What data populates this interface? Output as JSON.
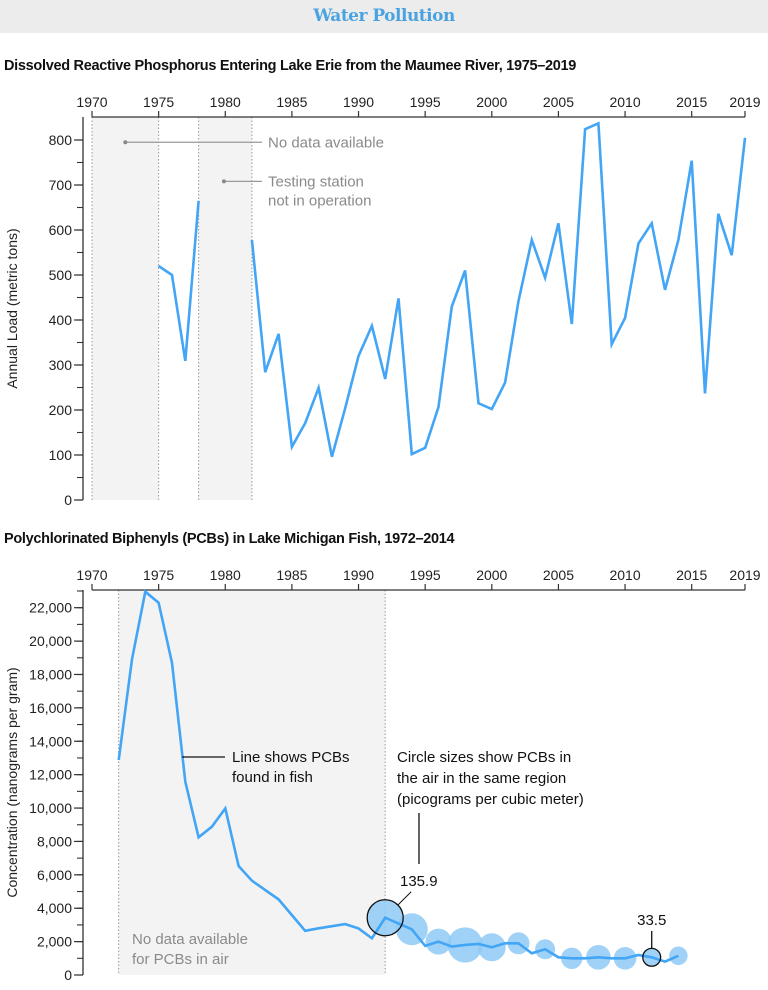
{
  "header": {
    "title": "Water Pollution"
  },
  "colors": {
    "line": "#42a5f5",
    "bubble": "#8fcaf6",
    "shade": "#f3f3f3",
    "header_bg": "#ececec",
    "header_text": "#4aa3e0",
    "annotation_gray": "#8a8a8a"
  },
  "chart_data": [
    {
      "type": "line",
      "title": "Dissolved Reactive Phosphorus Entering Lake Erie from the Maumee River, 1975–2019",
      "xlabel": "",
      "ylabel": "Annual Load (metric tons)",
      "xlim": [
        1970,
        2019
      ],
      "ylim": [
        0,
        850
      ],
      "x_ticks": [
        1970,
        1975,
        1980,
        1985,
        1990,
        1995,
        2000,
        2005,
        2010,
        2015,
        2019
      ],
      "y_ticks": [
        0,
        100,
        200,
        300,
        400,
        500,
        600,
        700,
        800
      ],
      "grid": false,
      "shaded_ranges": [
        [
          1970,
          1975
        ],
        [
          1978,
          1982
        ]
      ],
      "annotations": [
        {
          "text": [
            "No data available"
          ],
          "points_to_year": 1972.5,
          "value": 795
        },
        {
          "text": [
            "Testing station",
            "not in operation"
          ],
          "points_to_year": 1979.9,
          "value": 708
        }
      ],
      "segments": [
        {
          "x": [
            1975,
            1976,
            1977,
            1978
          ],
          "y": [
            520,
            500,
            309,
            665
          ]
        },
        {
          "x": [
            1982,
            1983,
            1984,
            1985,
            1986,
            1987,
            1988,
            1989,
            1990,
            1991,
            1992,
            1993,
            1994,
            1995,
            1996,
            1997,
            1998,
            1999,
            2000,
            2001,
            2002,
            2003,
            2004,
            2005,
            2006,
            2007,
            2008,
            2009,
            2010,
            2011,
            2012,
            2013,
            2014,
            2015,
            2016,
            2017,
            2018,
            2019
          ],
          "y": [
            578,
            284,
            369,
            118,
            171,
            249,
            96,
            204,
            320,
            387,
            269,
            448,
            102,
            116,
            207,
            430,
            510,
            215,
            202,
            261,
            441,
            578,
            494,
            615,
            391,
            824,
            837,
            346,
            405,
            570,
            615,
            467,
            578,
            754,
            237,
            636,
            544,
            805
          ]
        }
      ]
    },
    {
      "type": "line",
      "title": "Polychlorinated Biphenyls (PCBs) in Lake Michigan Fish, 1972–2014",
      "xlabel": "",
      "ylabel": "Concentration (nanograms per gram)",
      "xlim": [
        1970,
        2019
      ],
      "ylim": [
        0,
        23000
      ],
      "x_ticks": [
        1970,
        1975,
        1980,
        1985,
        1990,
        1995,
        2000,
        2005,
        2010,
        2015,
        2019
      ],
      "y_ticks": [
        0,
        2000,
        4000,
        6000,
        8000,
        10000,
        12000,
        14000,
        16000,
        18000,
        20000,
        22000
      ],
      "y_tick_labels": [
        "0",
        "2,000",
        "4,000",
        "6,000",
        "8,000",
        "10,000",
        "12,000",
        "14,000",
        "16,000",
        "18,000",
        "20,000",
        "22,000"
      ],
      "grid": false,
      "shaded_ranges": [
        [
          1972,
          1992
        ]
      ],
      "shaded_label": [
        "No data available",
        "for PCBs in air"
      ],
      "line_annotation": [
        "Line shows PCBs",
        "found in fish"
      ],
      "bubble_annotation": [
        "Circle sizes show PCBs in",
        "the air in the same region",
        "(picograms per cubic meter)"
      ],
      "fish": {
        "x": [
          1972,
          1973,
          1974,
          1975,
          1976,
          1977,
          1978,
          1979,
          1980,
          1981,
          1982,
          1983,
          1984,
          1985,
          1986,
          1987,
          1989,
          1990,
          1991,
          1992,
          1994,
          1995,
          1996,
          1997,
          1998,
          1999,
          2000,
          2001,
          2002,
          2003,
          2004,
          2005,
          2006,
          2007,
          2008,
          2009,
          2010,
          2011,
          2012,
          2013,
          2014
        ],
        "y": [
          12880,
          18910,
          22960,
          22300,
          18700,
          11580,
          8250,
          8880,
          9980,
          6530,
          5650,
          5090,
          4530,
          3590,
          2650,
          2800,
          3050,
          2790,
          2200,
          3430,
          2740,
          1740,
          2000,
          1700,
          1800,
          1860,
          1660,
          1900,
          1900,
          1300,
          1540,
          1060,
          1000,
          1000,
          1060,
          1000,
          1000,
          1200,
          1060,
          800,
          1150
        ]
      },
      "air_bubbles": {
        "x": [
          1992,
          1994,
          1996,
          1998,
          2000,
          2002,
          2004,
          2006,
          2008,
          2010,
          2012,
          2014
        ],
        "value": [
          135.9,
          107,
          71,
          130,
          82,
          51,
          42,
          48,
          64,
          54,
          33.5,
          36
        ],
        "labeled": [
          {
            "year": 1992,
            "text": "135.9"
          },
          {
            "year": 2012,
            "text": "33.5"
          }
        ]
      }
    }
  ]
}
